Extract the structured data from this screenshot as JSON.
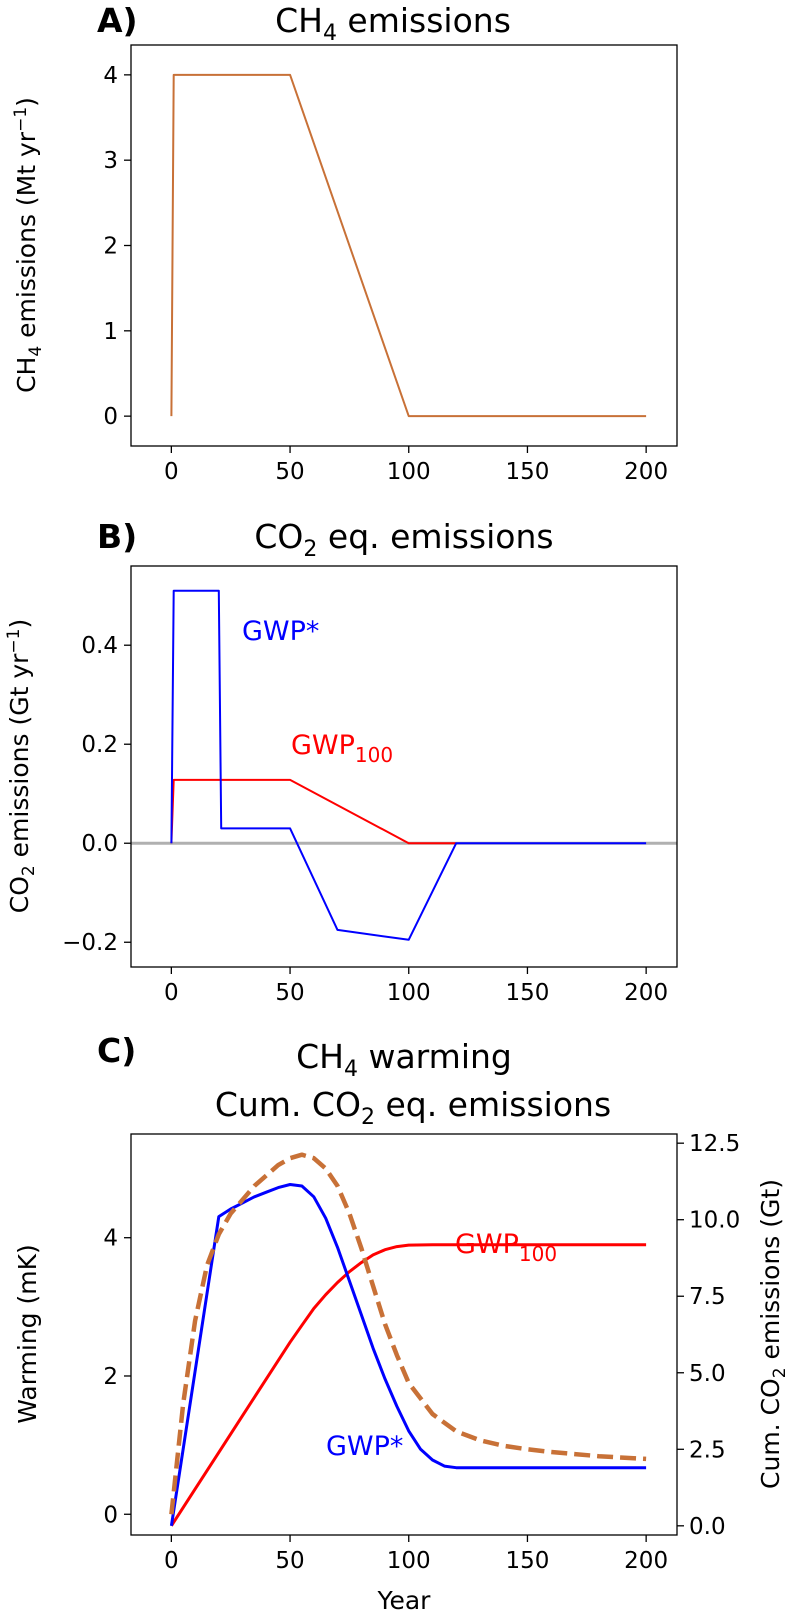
{
  "colors": {
    "ch4": "#c87137",
    "gwp_star": "#0000ff",
    "gwp100": "#ff0000",
    "zero_line": "#b0b0b0"
  },
  "panels": [
    {
      "letter": "A)",
      "title": "CH",
      "title_sub": "4",
      "title_rest": " emissions",
      "ylabel": "CH",
      "ylabel_sub": "4",
      "ylabel_rest": " emissions (Mt yr",
      "ylabel_sup": "−1",
      "ylabel_end": ")"
    },
    {
      "letter": "B)",
      "title": "CO",
      "title_sub": "2",
      "title_rest": " eq. emissions",
      "ylabel": "CO",
      "ylabel_sub": "2",
      "ylabel_rest": " emissions (Gt yr",
      "ylabel_sup": "−1",
      "ylabel_end": ")",
      "label_gwp_star": "GWP*",
      "label_gwp100": "GWP",
      "label_gwp100_sub": "100"
    },
    {
      "letter": "C)",
      "title_line1": "CH",
      "title_line1_sub": "4",
      "title_line1_rest": " warming",
      "title_line2": "Cum. CO",
      "title_line2_sub": "2",
      "title_line2_rest": " eq. emissions",
      "ylabel": "Warming (mK)",
      "ylabel_right": "Cum. CO",
      "ylabel_right_sub": "2",
      "ylabel_right_rest": " emissions (Gt)",
      "xlabel": "Year",
      "label_gwp_star": "GWP*",
      "label_gwp100": "GWP",
      "label_gwp100_sub": "100"
    }
  ],
  "chart_data": [
    {
      "type": "line",
      "title": "CH4 emissions",
      "ylabel": "CH4 emissions (Mt yr−1)",
      "xlim": [
        -17,
        213
      ],
      "ylim": [
        -0.35,
        4.35
      ],
      "xticks": [
        0,
        50,
        100,
        150,
        200
      ],
      "yticks": [
        0,
        1,
        2,
        3,
        4
      ],
      "series": [
        {
          "x": [
            0,
            1,
            50,
            100,
            200
          ],
          "y": [
            0,
            4,
            4,
            0,
            0
          ]
        }
      ]
    },
    {
      "type": "line",
      "title": "CO2 eq. emissions",
      "ylabel": "CO2 emissions (Gt yr−1)",
      "xlim": [
        -17,
        213
      ],
      "ylim": [
        -0.25,
        0.56
      ],
      "xticks": [
        0,
        50,
        100,
        150,
        200
      ],
      "yticks": [
        -0.2,
        0.0,
        0.2,
        0.4
      ],
      "ytick_labels": [
        "−0.2",
        "0.0",
        "0.2",
        "0.4"
      ],
      "series": [
        {
          "name": "GWP*",
          "x": [
            0,
            1,
            20,
            21,
            50,
            70,
            100,
            120,
            200
          ],
          "y": [
            0,
            0.51,
            0.51,
            0.03,
            0.03,
            -0.175,
            -0.195,
            0,
            0
          ]
        },
        {
          "name": "GWP100",
          "x": [
            0,
            1,
            50,
            100,
            120
          ],
          "y": [
            0,
            0.128,
            0.128,
            0,
            0
          ]
        }
      ]
    },
    {
      "type": "line",
      "title": "CH4 warming / Cum. CO2 eq. emissions",
      "xlabel": "Year",
      "ylabel": "Warming (mK)",
      "ylabel_right": "Cum. CO2 emissions (Gt)",
      "xlim": [
        -17,
        213
      ],
      "ylim": [
        -0.3,
        5.5
      ],
      "ylim_right": [
        -0.3,
        12.8
      ],
      "xticks": [
        0,
        50,
        100,
        150,
        200
      ],
      "yticks": [
        0,
        2,
        4
      ],
      "yticks_right": [
        0.0,
        2.5,
        5.0,
        7.5,
        10.0,
        12.5
      ],
      "yticks_right_labels": [
        "0.0",
        "2.5",
        "5.0",
        "7.5",
        "10.0",
        "12.5"
      ],
      "series": [
        {
          "name": "CH4 warming",
          "axis": "left",
          "style": "dashed",
          "x": [
            0,
            5,
            10,
            15,
            20,
            25,
            30,
            35,
            40,
            45,
            50,
            55,
            60,
            65,
            70,
            75,
            80,
            85,
            90,
            95,
            100,
            110,
            120,
            130,
            140,
            150,
            160,
            170,
            180,
            190,
            200
          ],
          "y": [
            0,
            1.6,
            2.8,
            3.6,
            4.05,
            4.35,
            4.55,
            4.75,
            4.9,
            5.05,
            5.15,
            5.2,
            5.15,
            5.0,
            4.75,
            4.35,
            3.85,
            3.3,
            2.75,
            2.3,
            1.9,
            1.45,
            1.2,
            1.07,
            0.99,
            0.94,
            0.9,
            0.87,
            0.84,
            0.82,
            0.8
          ]
        },
        {
          "name": "GWP*",
          "axis": "right",
          "x": [
            0,
            20,
            25,
            30,
            35,
            40,
            45,
            50,
            55,
            60,
            65,
            70,
            75,
            80,
            85,
            90,
            95,
            100,
            105,
            110,
            115,
            120,
            200
          ],
          "y": [
            0,
            10.1,
            10.35,
            10.55,
            10.75,
            10.9,
            11.05,
            11.15,
            11.1,
            10.75,
            10.05,
            9.1,
            8.0,
            6.9,
            5.8,
            4.8,
            3.9,
            3.1,
            2.5,
            2.15,
            1.95,
            1.9,
            1.9
          ]
        },
        {
          "name": "GWP100",
          "axis": "right",
          "x": [
            0,
            10,
            20,
            30,
            40,
            50,
            55,
            60,
            65,
            70,
            75,
            80,
            85,
            90,
            95,
            100,
            110,
            120,
            200
          ],
          "y": [
            0,
            1.2,
            2.4,
            3.6,
            4.8,
            6.0,
            6.55,
            7.1,
            7.55,
            7.95,
            8.3,
            8.6,
            8.85,
            9.02,
            9.12,
            9.17,
            9.18,
            9.18,
            9.18
          ]
        }
      ]
    }
  ]
}
